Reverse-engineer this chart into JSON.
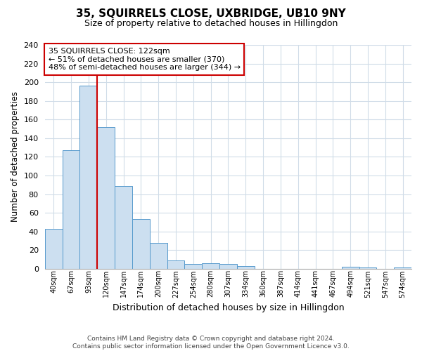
{
  "title": "35, SQUIRRELS CLOSE, UXBRIDGE, UB10 9NY",
  "subtitle": "Size of property relative to detached houses in Hillingdon",
  "xlabel": "Distribution of detached houses by size in Hillingdon",
  "ylabel": "Number of detached properties",
  "bin_labels": [
    "40sqm",
    "67sqm",
    "93sqm",
    "120sqm",
    "147sqm",
    "174sqm",
    "200sqm",
    "227sqm",
    "254sqm",
    "280sqm",
    "307sqm",
    "334sqm",
    "360sqm",
    "387sqm",
    "414sqm",
    "441sqm",
    "467sqm",
    "494sqm",
    "521sqm",
    "547sqm",
    "574sqm"
  ],
  "bar_heights": [
    43,
    127,
    196,
    152,
    89,
    53,
    28,
    9,
    5,
    6,
    5,
    3,
    0,
    0,
    0,
    0,
    0,
    2,
    1,
    0,
    1
  ],
  "bar_color": "#ccdff0",
  "bar_edge_color": "#5599cc",
  "vline_color": "#cc0000",
  "annotation_line1": "35 SQUIRRELS CLOSE: 122sqm",
  "annotation_line2": "← 51% of detached houses are smaller (370)",
  "annotation_line3": "48% of semi-detached houses are larger (344) →",
  "annotation_box_color": "#ffffff",
  "annotation_box_edge": "#cc0000",
  "ylim": [
    0,
    240
  ],
  "yticks": [
    0,
    20,
    40,
    60,
    80,
    100,
    120,
    140,
    160,
    180,
    200,
    220,
    240
  ],
  "footer_text": "Contains HM Land Registry data © Crown copyright and database right 2024.\nContains public sector information licensed under the Open Government Licence v3.0.",
  "background_color": "#ffffff",
  "grid_color": "#d0dce8"
}
